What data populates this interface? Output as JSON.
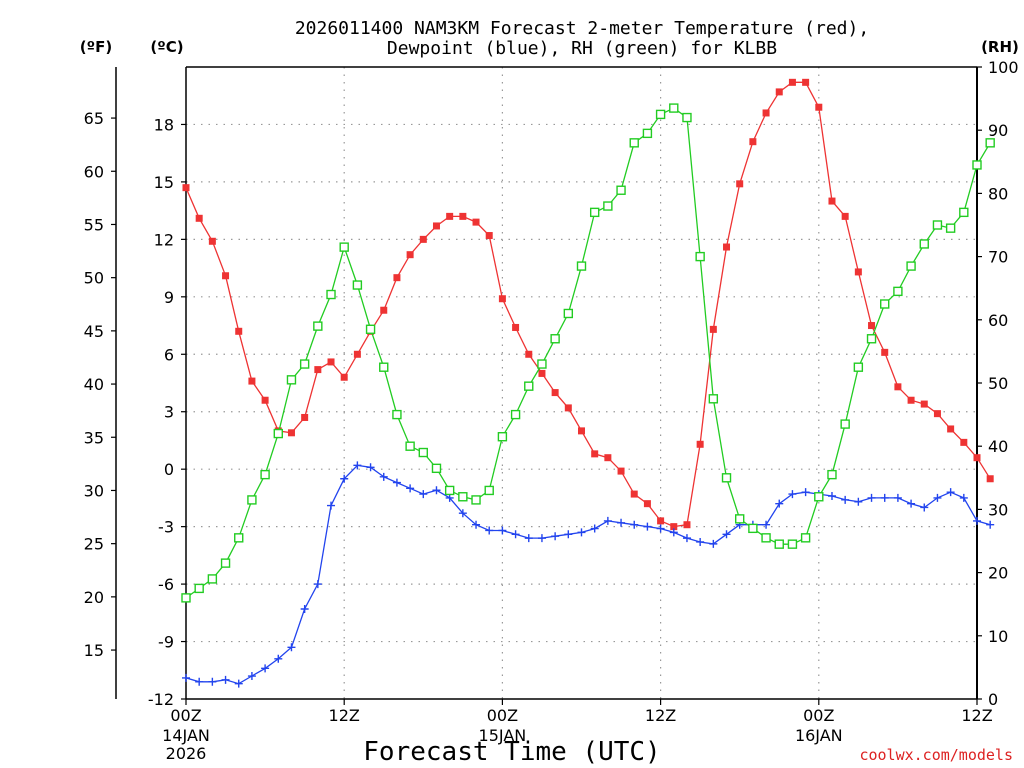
{
  "chart_data": {
    "type": "line",
    "title_line1": "2026011400 NAM3KM Forecast 2-meter Temperature (red),",
    "title_line2": "Dewpoint (blue), RH (green) for KLBB",
    "xlabel": "Forecast Time (UTC)",
    "y_left_outer_unit": "(ºF)",
    "y_left_inner_unit": "(ºC)",
    "y_right_unit": "(RH)",
    "watermark": "coolwx.com/models",
    "xlim": [
      0,
      60
    ],
    "ylim_c": [
      -12,
      21
    ],
    "ylim_rh": [
      0,
      100
    ],
    "grid": true,
    "x_ticks": [
      {
        "hour": 0,
        "label": "00Z"
      },
      {
        "hour": 12,
        "label": "12Z"
      },
      {
        "hour": 24,
        "label": "00Z"
      },
      {
        "hour": 36,
        "label": "12Z"
      },
      {
        "hour": 48,
        "label": "00Z"
      },
      {
        "hour": 60,
        "label": "12Z"
      }
    ],
    "date_labels": [
      {
        "hour": 0,
        "lines": [
          "14JAN",
          "2026"
        ]
      },
      {
        "hour": 24,
        "lines": [
          "15JAN"
        ]
      },
      {
        "hour": 48,
        "lines": [
          "16JAN"
        ]
      }
    ],
    "celsius_ticks": [
      -12,
      -9,
      -6,
      -3,
      0,
      3,
      6,
      9,
      12,
      15,
      18
    ],
    "fahrenheit_ticks": [
      15,
      20,
      25,
      30,
      35,
      40,
      45,
      50,
      55,
      60,
      65
    ],
    "rh_ticks": [
      0,
      10,
      20,
      30,
      40,
      50,
      60,
      70,
      80,
      90,
      100
    ],
    "series": [
      {
        "name": "Temperature",
        "units": "C",
        "color": "#ee3333",
        "marker": "filled-square",
        "values": [
          14.7,
          13.1,
          11.9,
          10.1,
          7.2,
          4.6,
          3.6,
          2.0,
          1.9,
          2.7,
          5.2,
          5.6,
          4.8,
          6.0,
          7.2,
          8.3,
          10.0,
          11.2,
          12.0,
          12.7,
          13.2,
          13.2,
          12.9,
          12.2,
          8.9,
          7.4,
          6.0,
          5.0,
          4.0,
          3.2,
          2.0,
          0.8,
          0.6,
          -0.1,
          -1.3,
          -1.8,
          -2.7,
          -3.0,
          -2.9,
          1.3,
          7.3,
          11.6,
          14.9,
          17.1,
          18.6,
          19.7,
          20.2,
          20.2,
          18.9,
          14.0,
          13.2,
          10.3,
          7.5,
          6.1,
          4.3,
          3.6,
          3.4,
          2.9,
          2.1,
          1.4,
          0.6,
          -0.5
        ]
      },
      {
        "name": "Dewpoint",
        "units": "C",
        "color": "#2244ee",
        "marker": "plus",
        "values": [
          -10.9,
          -11.1,
          -11.1,
          -11.0,
          -11.2,
          -10.8,
          -10.4,
          -9.9,
          -9.3,
          -7.3,
          -6.0,
          -1.9,
          -0.5,
          0.2,
          0.1,
          -0.4,
          -0.7,
          -1.0,
          -1.3,
          -1.1,
          -1.5,
          -2.3,
          -2.9,
          -3.2,
          -3.2,
          -3.4,
          -3.6,
          -3.6,
          -3.5,
          -3.4,
          -3.3,
          -3.1,
          -2.7,
          -2.8,
          -2.9,
          -3.0,
          -3.1,
          -3.3,
          -3.6,
          -3.8,
          -3.9,
          -3.4,
          -2.9,
          -2.9,
          -2.9,
          -1.8,
          -1.3,
          -1.2,
          -1.3,
          -1.4,
          -1.6,
          -1.7,
          -1.5,
          -1.5,
          -1.5,
          -1.8,
          -2.0,
          -1.5,
          -1.2,
          -1.5,
          -2.7,
          -2.9
        ]
      },
      {
        "name": "Relative Humidity",
        "units": "%",
        "color": "#22cc22",
        "marker": "open-square",
        "values": [
          16,
          17.5,
          19,
          21.5,
          25.5,
          31.5,
          35.5,
          42,
          50.5,
          53,
          59,
          64,
          71.5,
          65.5,
          58.5,
          52.5,
          45,
          40,
          39,
          36.5,
          33,
          32,
          31.5,
          33,
          41.5,
          45,
          49.5,
          53,
          57,
          61,
          68.5,
          77,
          78,
          80.5,
          88,
          89.5,
          92.5,
          93.5,
          92,
          70,
          47.5,
          35,
          28.5,
          27,
          25.5,
          24.5,
          24.5,
          25.5,
          32,
          35.5,
          43.5,
          52.5,
          57,
          62.5,
          64.5,
          68.5,
          72,
          75,
          74.5,
          77,
          84.5,
          88
        ]
      }
    ]
  }
}
